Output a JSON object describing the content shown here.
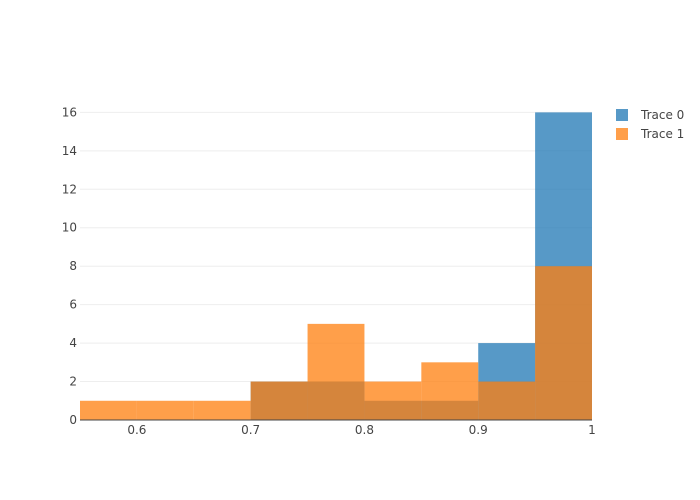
{
  "chart_data": {
    "type": "bar",
    "barmode": "overlay",
    "bin_edges": [
      0.55,
      0.6,
      0.65,
      0.7,
      0.75,
      0.8,
      0.85,
      0.9,
      0.95,
      1.0
    ],
    "series": [
      {
        "name": "Trace 0",
        "color": "#1f77b4",
        "counts": [
          0,
          0,
          0,
          2,
          2,
          1,
          1,
          4,
          16
        ]
      },
      {
        "name": "Trace 1",
        "color": "#ff7f0e",
        "counts": [
          1,
          1,
          1,
          2,
          5,
          2,
          3,
          2,
          8
        ]
      }
    ],
    "xlim": [
      0.55,
      1.0
    ],
    "ylim": [
      0,
      16.8
    ],
    "xticks": [
      {
        "value": 0.6,
        "label": "0.6"
      },
      {
        "value": 0.7,
        "label": "0.7"
      },
      {
        "value": 0.8,
        "label": "0.8"
      },
      {
        "value": 0.9,
        "label": "0.9"
      },
      {
        "value": 1.0,
        "label": "1"
      }
    ],
    "yticks": [
      {
        "value": 0,
        "label": "0"
      },
      {
        "value": 2,
        "label": "2"
      },
      {
        "value": 4,
        "label": "4"
      },
      {
        "value": 6,
        "label": "6"
      },
      {
        "value": 8,
        "label": "8"
      },
      {
        "value": 10,
        "label": "10"
      },
      {
        "value": 12,
        "label": "12"
      },
      {
        "value": 14,
        "label": "14"
      },
      {
        "value": 16,
        "label": "16"
      }
    ],
    "grid": true,
    "legend": {
      "position": "top-right",
      "entries": [
        "Trace 0",
        "Trace 1"
      ]
    },
    "title": "",
    "xlabel": "",
    "ylabel": ""
  }
}
